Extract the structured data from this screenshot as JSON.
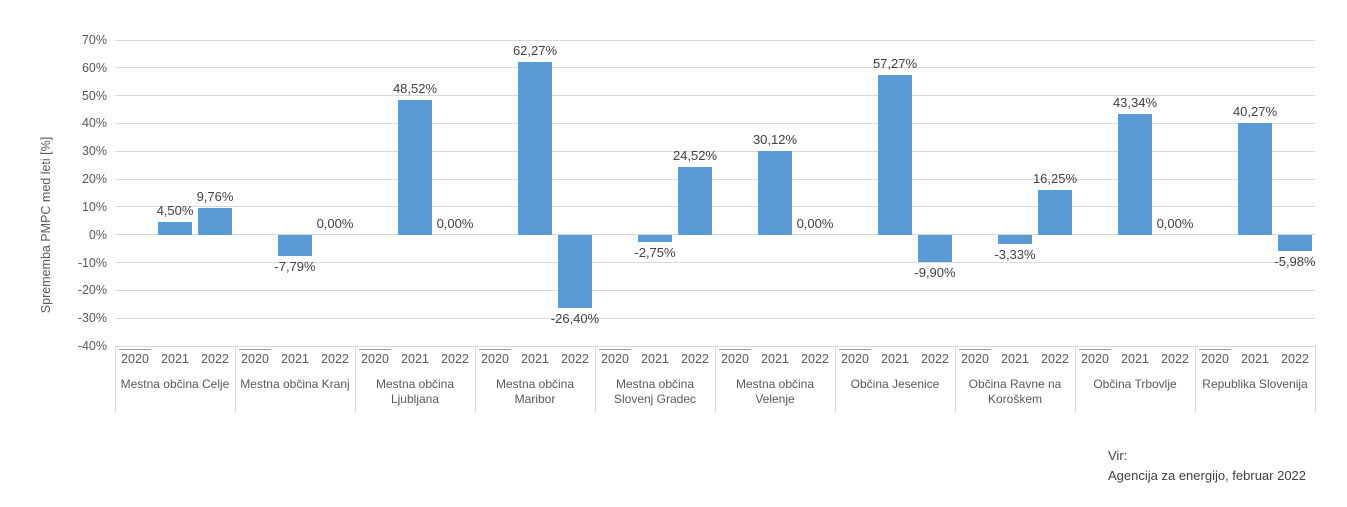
{
  "chart_data": {
    "type": "bar",
    "title": "",
    "ylabel": "Sprememba PMPC med leti [%]",
    "xlabel": "",
    "ylim": [
      -40,
      70
    ],
    "ytick_step": 10,
    "ytick_labels": [
      "70%",
      "60%",
      "50%",
      "40%",
      "30%",
      "20%",
      "10%",
      "0%",
      "-10%",
      "-20%",
      "-30%",
      "-40%"
    ],
    "grid": true,
    "legend": "none",
    "bar_color": "#5b9bd5",
    "categories": [
      "Mestna občina Celje",
      "Mestna občina Kranj",
      "Mestna občina Ljubljana",
      "Mestna občina Maribor",
      "Mestna občina Slovenj Gradec",
      "Mestna občina Velenje",
      "Občina Jesenice",
      "Občina Ravne na Koroškem",
      "Občina Trbovlje",
      "Republika Slovenija"
    ],
    "x_sublabels": [
      "2020",
      "2021",
      "2022"
    ],
    "series": [
      {
        "name": "2020",
        "values": [
          null,
          null,
          null,
          null,
          null,
          null,
          null,
          null,
          null,
          null
        ]
      },
      {
        "name": "2021",
        "values": [
          4.5,
          -7.79,
          48.52,
          62.27,
          -2.75,
          30.12,
          57.27,
          -3.33,
          43.34,
          40.27
        ]
      },
      {
        "name": "2022",
        "values": [
          9.76,
          0.0,
          0.0,
          -26.4,
          24.52,
          0.0,
          -9.9,
          16.25,
          0.0,
          -5.98
        ]
      }
    ],
    "data_labels": [
      [
        "",
        "4,50%",
        "9,76%"
      ],
      [
        "",
        "-7,79%",
        "0,00%"
      ],
      [
        "",
        "48,52%",
        "0,00%"
      ],
      [
        "",
        "62,27%",
        "-26,40%"
      ],
      [
        "",
        "-2,75%",
        "24,52%"
      ],
      [
        "",
        "30,12%",
        "0,00%"
      ],
      [
        "",
        "57,27%",
        "-9,90%"
      ],
      [
        "",
        "-3,33%",
        "16,25%"
      ],
      [
        "",
        "43,34%",
        "0,00%"
      ],
      [
        "",
        "40,27%",
        "-5,98%"
      ]
    ]
  },
  "source": {
    "label": "Vir:",
    "text": "Agencija za energijo, februar 2022"
  }
}
